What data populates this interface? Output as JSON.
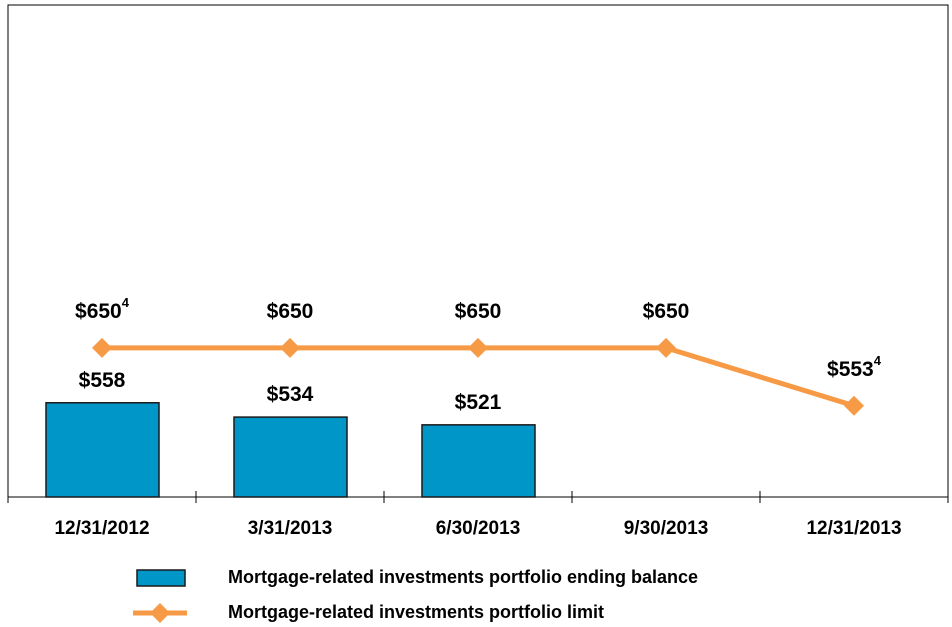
{
  "chart_data": {
    "type": "bar-line",
    "categories": [
      "12/31/2012",
      "3/31/2013",
      "6/30/2013",
      "9/30/2013",
      "12/31/2013"
    ],
    "series": [
      {
        "name": "Mortgage-related investments portfolio ending balance",
        "type": "bar",
        "color": "#0096c8",
        "values": [
          558,
          534,
          521,
          null,
          null
        ],
        "value_labels": [
          "$558",
          "$534",
          "$521",
          null,
          null
        ]
      },
      {
        "name": "Mortgage-related investments portfolio limit",
        "type": "line",
        "color": "#f79a46",
        "values": [
          650,
          650,
          650,
          650,
          553
        ],
        "value_labels": [
          "$650",
          "$650",
          "$650",
          "$650",
          "$553"
        ],
        "value_footnotes": [
          "4",
          null,
          null,
          null,
          "4"
        ]
      }
    ],
    "ylim": [
      400,
      1225
    ]
  }
}
